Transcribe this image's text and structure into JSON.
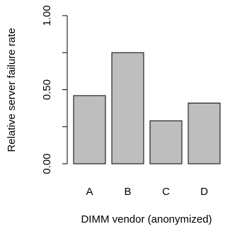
{
  "chart_data": {
    "type": "bar",
    "categories": [
      "A",
      "B",
      "C",
      "D"
    ],
    "values": [
      0.46,
      0.75,
      0.29,
      0.41
    ],
    "xlabel": "DIMM vendor (anonymized)",
    "ylabel": "Relative server failure rate",
    "ylim": [
      0,
      1
    ],
    "yticks": [
      0.0,
      0.25,
      0.5,
      0.75,
      1.0
    ],
    "ytick_labels": [
      "0.00",
      "",
      "0.50",
      "",
      "1.00"
    ],
    "bar_color": "#bebebe",
    "bar_outline": "#000000",
    "grid": false
  }
}
